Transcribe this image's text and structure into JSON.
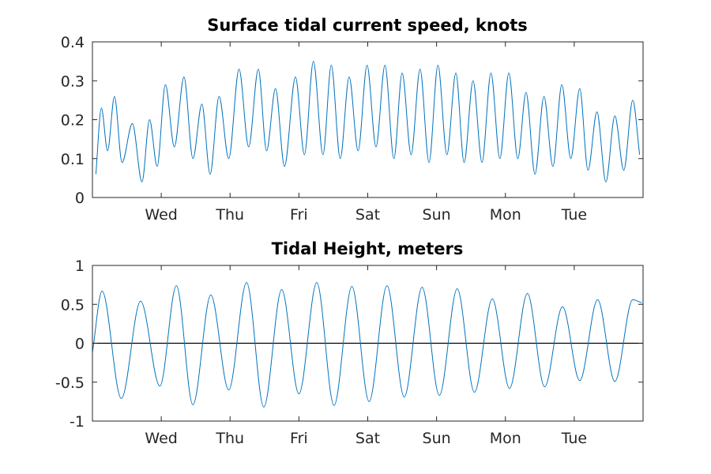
{
  "chart_data": [
    {
      "type": "line",
      "title": "Surface tidal current speed, knots",
      "xlabel": "",
      "ylabel": "",
      "xlim": [
        0,
        8
      ],
      "ylim": [
        0,
        0.4
      ],
      "yticks": [
        "0",
        "0.1",
        "0.2",
        "0.3",
        "0.4"
      ],
      "xtick_positions": [
        1,
        2,
        3,
        4,
        5,
        6,
        7
      ],
      "xtick_labels": [
        "Wed",
        "Thu",
        "Fri",
        "Sat",
        "Sun",
        "Mon",
        "Tue"
      ],
      "series_color": "#0072BD",
      "series": [
        {
          "x": [
            0.05,
            0.13,
            0.22,
            0.32,
            0.43,
            0.58,
            0.72,
            0.83,
            0.94,
            1.06,
            1.19,
            1.33,
            1.46,
            1.59,
            1.71,
            1.84,
            1.98,
            2.13,
            2.27,
            2.41,
            2.53,
            2.66,
            2.79,
            2.95,
            3.08,
            3.21,
            3.35,
            3.47,
            3.6,
            3.73,
            3.86,
            3.99,
            4.12,
            4.25,
            4.38,
            4.5,
            4.63,
            4.76,
            4.89,
            5.02,
            5.15,
            5.28,
            5.4,
            5.53,
            5.66,
            5.79,
            5.92,
            6.05,
            6.18,
            6.3,
            6.43,
            6.56,
            6.69,
            6.82,
            6.95,
            7.08,
            7.2,
            7.33,
            7.46,
            7.59,
            7.72,
            7.85,
            7.95
          ],
          "y": [
            0.06,
            0.23,
            0.12,
            0.26,
            0.09,
            0.19,
            0.04,
            0.2,
            0.08,
            0.29,
            0.13,
            0.31,
            0.1,
            0.24,
            0.06,
            0.26,
            0.1,
            0.33,
            0.13,
            0.33,
            0.12,
            0.28,
            0.08,
            0.31,
            0.11,
            0.35,
            0.11,
            0.34,
            0.1,
            0.31,
            0.12,
            0.34,
            0.13,
            0.34,
            0.1,
            0.32,
            0.11,
            0.33,
            0.09,
            0.34,
            0.11,
            0.32,
            0.09,
            0.3,
            0.09,
            0.32,
            0.1,
            0.32,
            0.1,
            0.27,
            0.06,
            0.26,
            0.08,
            0.29,
            0.1,
            0.28,
            0.07,
            0.22,
            0.04,
            0.21,
            0.07,
            0.25,
            0.11
          ]
        }
      ]
    },
    {
      "type": "line",
      "title": "Tidal Height, meters",
      "xlabel": "",
      "ylabel": "",
      "xlim": [
        0,
        8
      ],
      "ylim": [
        -1,
        1
      ],
      "yticks": [
        "-1",
        "-0.5",
        "0",
        "0.5",
        "1"
      ],
      "xtick_positions": [
        1,
        2,
        3,
        4,
        5,
        6,
        7
      ],
      "xtick_labels": [
        "Wed",
        "Thu",
        "Fri",
        "Sat",
        "Sun",
        "Mon",
        "Tue"
      ],
      "zero_line": true,
      "series_color": "#0072BD",
      "series": [
        {
          "x": [
            0.0,
            0.14,
            0.42,
            0.7,
            0.98,
            1.22,
            1.46,
            1.72,
            1.98,
            2.24,
            2.49,
            2.75,
            3.0,
            3.26,
            3.51,
            3.77,
            4.02,
            4.28,
            4.53,
            4.79,
            5.04,
            5.3,
            5.55,
            5.81,
            6.06,
            6.32,
            6.57,
            6.83,
            7.08,
            7.34,
            7.59,
            7.85,
            7.98
          ],
          "y": [
            -0.12,
            0.67,
            -0.71,
            0.54,
            -0.55,
            0.74,
            -0.79,
            0.62,
            -0.6,
            0.78,
            -0.82,
            0.69,
            -0.65,
            0.78,
            -0.8,
            0.73,
            -0.75,
            0.74,
            -0.69,
            0.72,
            -0.67,
            0.7,
            -0.63,
            0.57,
            -0.58,
            0.64,
            -0.56,
            0.47,
            -0.48,
            0.56,
            -0.49,
            0.56,
            0.52
          ]
        }
      ]
    }
  ]
}
